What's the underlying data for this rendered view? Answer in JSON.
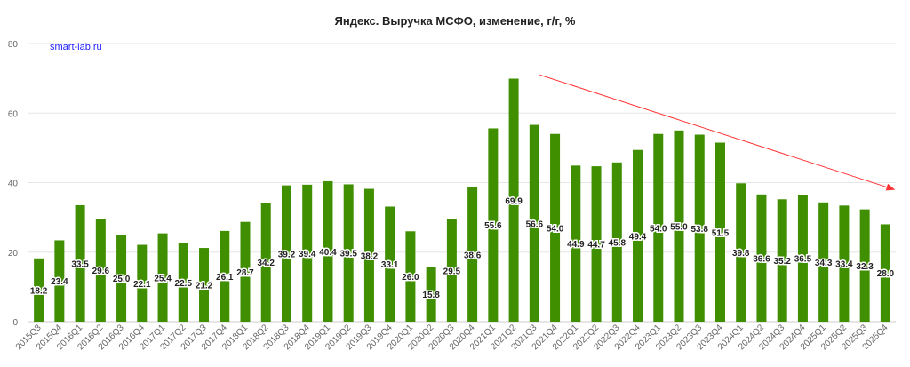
{
  "chart_data": {
    "type": "bar",
    "title": "Яндекс. Выручка МСФО, изменение, г/г, %",
    "watermark": "smart-lab.ru",
    "xlabel": "",
    "ylabel": "",
    "ylim": [
      0,
      80
    ],
    "yticks": [
      0,
      20,
      40,
      60,
      80
    ],
    "grid": true,
    "bar_color": "#3f8f00",
    "trend_color": "#ff3333",
    "trend_line": {
      "from": [
        "2021Q3",
        71
      ],
      "to": [
        "2025Q4",
        38
      ]
    },
    "categories": [
      "2015Q3",
      "2015Q4",
      "2016Q1",
      "2016Q2",
      "2016Q3",
      "2016Q4",
      "2017Q1",
      "2017Q2",
      "2017Q3",
      "2017Q4",
      "2018Q1",
      "2018Q2",
      "2018Q3",
      "2018Q4",
      "2019Q1",
      "2019Q2",
      "2019Q3",
      "2019Q4",
      "2020Q1",
      "2020Q2",
      "2020Q3",
      "2020Q4",
      "2021Q1",
      "2021Q2",
      "2021Q3",
      "2021Q4",
      "2022Q1",
      "2022Q2",
      "2022Q3",
      "2022Q4",
      "2023Q1",
      "2023Q2",
      "2023Q3",
      "2023Q4",
      "2024Q1",
      "2024Q2",
      "2024Q3",
      "2024Q4",
      "2025Q1",
      "2025Q2",
      "2025Q3",
      "2025Q4"
    ],
    "values": [
      18.2,
      23.4,
      33.5,
      29.6,
      25.0,
      22.1,
      25.4,
      22.5,
      21.2,
      26.1,
      28.7,
      34.2,
      39.2,
      39.4,
      40.4,
      39.5,
      38.2,
      33.1,
      26.0,
      15.8,
      29.5,
      38.6,
      55.6,
      69.9,
      56.6,
      54.0,
      44.9,
      44.7,
      45.8,
      49.4,
      54.0,
      55.0,
      53.8,
      51.5,
      39.8,
      36.6,
      35.2,
      36.5,
      34.3,
      33.4,
      32.3,
      28.0
    ]
  }
}
